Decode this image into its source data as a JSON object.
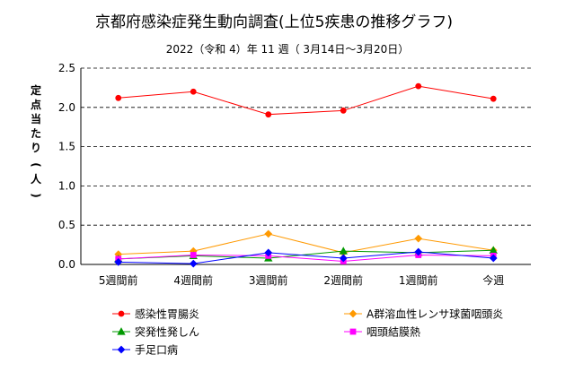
{
  "chart_data": {
    "type": "line",
    "title": "京都府感染症発生動向調査(上位5疾患の推移グラフ)",
    "subtitle": "2022（令和 4）年  11 週（ 3月14日〜3月20日）",
    "ylabel_chars": [
      "定",
      "点",
      "当",
      "た",
      "り",
      "(",
      "人",
      ")"
    ],
    "categories": [
      "5週間前",
      "4週間前",
      "3週間前",
      "2週間前",
      "1週間前",
      "今週"
    ],
    "ylim": [
      0,
      2.5
    ],
    "yticks": [
      "0.0",
      "0.5",
      "1.0",
      "1.5",
      "2.0",
      "2.5"
    ],
    "grid": "horizontal-dashed",
    "legend_position": "bottom",
    "series": [
      {
        "name": "感染性胃腸炎",
        "color": "#ff0000",
        "marker": "circle",
        "values": [
          2.12,
          2.2,
          1.91,
          1.96,
          2.27,
          2.11
        ]
      },
      {
        "name": "A群溶血性レンサ球菌咽頭炎",
        "color": "#ff9900",
        "marker": "diamond",
        "values": [
          0.13,
          0.17,
          0.39,
          0.15,
          0.33,
          0.18
        ]
      },
      {
        "name": "突発性発しん",
        "color": "#009900",
        "marker": "triangle",
        "values": [
          0.07,
          0.11,
          0.08,
          0.17,
          0.15,
          0.18
        ]
      },
      {
        "name": "咽頭結膜熱",
        "color": "#ff00ff",
        "marker": "square",
        "values": [
          0.07,
          0.12,
          0.11,
          0.04,
          0.12,
          0.11
        ]
      },
      {
        "name": "手足口病",
        "color": "#0000ff",
        "marker": "diamond",
        "values": [
          0.03,
          0.01,
          0.15,
          0.08,
          0.16,
          0.08
        ]
      }
    ]
  }
}
